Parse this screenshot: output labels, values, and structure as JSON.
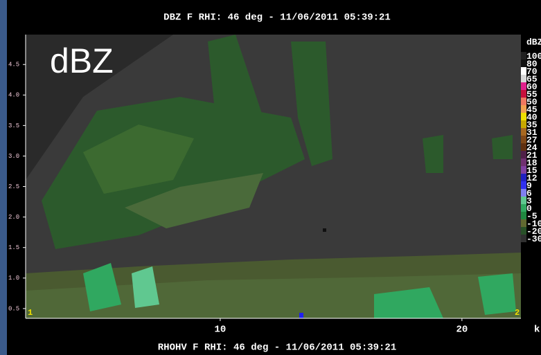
{
  "chart_data": {
    "type": "rhi",
    "title": "DBZ F  RHI: 46 deg  -  11/06/2011 05:39:21",
    "subtitle": "RHOHV F  RHI: 46 deg  -  11/06/2011 05:39:21",
    "field_label": "dBZ",
    "x_unit_label": "k",
    "corner_labels": [
      "1",
      "2"
    ],
    "xlim": [
      1.95,
      22.44
    ],
    "xticks": [
      10,
      20
    ],
    "ylim": [
      0.34,
      4.99
    ],
    "yticks": [
      0.5,
      {
        "value": 1,
        "label": "1.0"
      },
      1.5,
      {
        "value": 2,
        "label": "2.0"
      },
      2.5,
      {
        "value": 3,
        "label": "3.0"
      },
      3.5,
      {
        "value": 4,
        "label": "4.0"
      },
      4.5
    ],
    "colorbar": {
      "title": "dBZ",
      "levels": [
        {
          "value": 100,
          "color": "#202020"
        },
        {
          "value": 80,
          "color": "#101010"
        },
        {
          "value": 70,
          "color": "#ffffff"
        },
        {
          "value": 65,
          "color": "#d8d8d8"
        },
        {
          "value": 60,
          "color": "#e0208c"
        },
        {
          "value": 55,
          "color": "#c8103c"
        },
        {
          "value": 50,
          "color": "#f07860"
        },
        {
          "value": 45,
          "color": "#f0a050"
        },
        {
          "value": 40,
          "color": "#f0e000"
        },
        {
          "value": 35,
          "color": "#c8a800"
        },
        {
          "value": 31,
          "color": "#a86820"
        },
        {
          "value": 27,
          "color": "#804818"
        },
        {
          "value": 24,
          "color": "#603010"
        },
        {
          "value": 21,
          "color": "#502048"
        },
        {
          "value": 18,
          "color": "#703070"
        },
        {
          "value": 15,
          "color": "#8040a0"
        },
        {
          "value": 12,
          "color": "#2020c0"
        },
        {
          "value": 9,
          "color": "#3030f0"
        },
        {
          "value": 6,
          "color": "#8080f0"
        },
        {
          "value": 3,
          "color": "#60c890"
        },
        {
          "value": 0,
          "color": "#30a860"
        },
        {
          "value": -5,
          "color": "#208840"
        },
        {
          "value": -10,
          "color": "#606830"
        },
        {
          "value": -20,
          "color": "#285028"
        },
        {
          "value": -30,
          "color": "#303030"
        }
      ]
    }
  }
}
